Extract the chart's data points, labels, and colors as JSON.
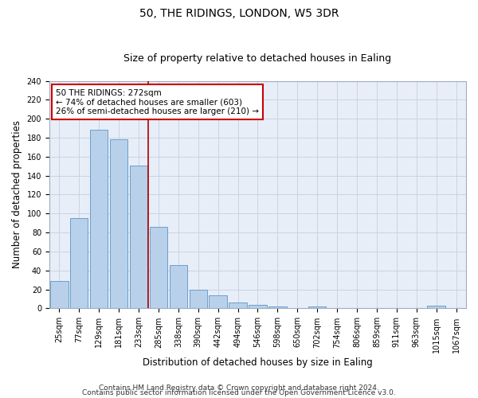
{
  "title_line1": "50, THE RIDINGS, LONDON, W5 3DR",
  "title_line2": "Size of property relative to detached houses in Ealing",
  "xlabel": "Distribution of detached houses by size in Ealing",
  "ylabel": "Number of detached properties",
  "categories": [
    "25sqm",
    "77sqm",
    "129sqm",
    "181sqm",
    "233sqm",
    "285sqm",
    "338sqm",
    "390sqm",
    "442sqm",
    "494sqm",
    "546sqm",
    "598sqm",
    "650sqm",
    "702sqm",
    "754sqm",
    "806sqm",
    "859sqm",
    "911sqm",
    "963sqm",
    "1015sqm",
    "1067sqm"
  ],
  "values": [
    29,
    95,
    188,
    178,
    151,
    86,
    46,
    20,
    14,
    6,
    4,
    2,
    0,
    2,
    0,
    0,
    0,
    0,
    0,
    3,
    0
  ],
  "bar_color": "#b8d0ea",
  "bar_edge_color": "#6aa0cc",
  "annotation_box_text": "50 THE RIDINGS: 272sqm\n← 74% of detached houses are smaller (603)\n26% of semi-detached houses are larger (210) →",
  "annotation_box_color": "#ffffff",
  "annotation_box_edge_color": "#cc0000",
  "vline_x": 4.5,
  "vline_color": "#aa0000",
  "ylim": [
    0,
    240
  ],
  "yticks": [
    0,
    20,
    40,
    60,
    80,
    100,
    120,
    140,
    160,
    180,
    200,
    220,
    240
  ],
  "grid_color": "#c8d4e4",
  "background_color": "#e8eef8",
  "footer_line1": "Contains HM Land Registry data © Crown copyright and database right 2024.",
  "footer_line2": "Contains public sector information licensed under the Open Government Licence v3.0.",
  "title_fontsize": 10,
  "subtitle_fontsize": 9,
  "axis_label_fontsize": 8.5,
  "tick_fontsize": 7,
  "annotation_fontsize": 7.5,
  "footer_fontsize": 6.5
}
